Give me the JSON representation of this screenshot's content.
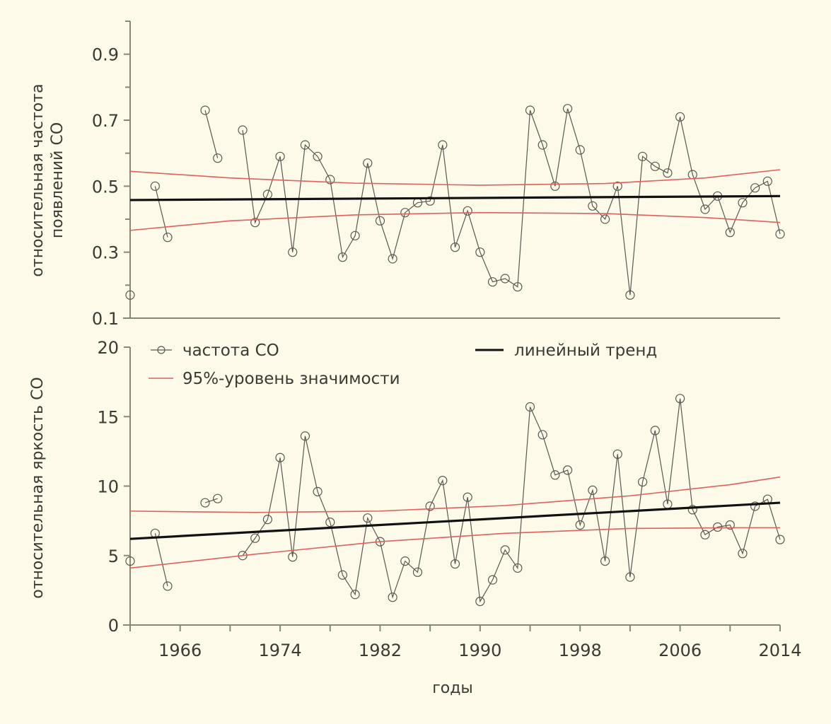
{
  "chart_data": [
    {
      "type": "line",
      "panel": "top",
      "ylabel": [
        "относительная частота",
        "появлений СО"
      ],
      "xlabel": "",
      "xlim": [
        1962,
        2014
      ],
      "ylim": [
        0.1,
        1.0
      ],
      "yticks": [
        0.1,
        0.3,
        0.5,
        0.7,
        0.9
      ],
      "ytick_labels": [
        "0.1",
        "0.3",
        "0.5",
        "0.7",
        "0.9"
      ],
      "yminor": [
        0.2,
        0.4,
        0.6,
        0.8
      ],
      "series": [
        {
          "name": "частота СО",
          "style": "line-circle-markers",
          "color": "#5a5850",
          "segments": [
            {
              "x": [
                1962
              ],
              "y": [
                0.17
              ]
            },
            {
              "x": [
                1964,
                1965
              ],
              "y": [
                0.5,
                0.345
              ]
            },
            {
              "x": [
                1968,
                1969
              ],
              "y": [
                0.73,
                0.585
              ]
            },
            {
              "x": [
                1971,
                1972,
                1973,
                1974,
                1975,
                1976,
                1977,
                1978,
                1979,
                1980,
                1981,
                1982,
                1983,
                1984,
                1985,
                1986,
                1987,
                1988,
                1989,
                1990,
                1991,
                1992,
                1993,
                1994,
                1995,
                1996,
                1997,
                1998,
                1999,
                2000,
                2001,
                2002,
                2003,
                2004,
                2005,
                2006,
                2007,
                2008,
                2009,
                2010,
                2011,
                2012,
                2013,
                2014
              ],
              "y": [
                0.67,
                0.39,
                0.475,
                0.59,
                0.3,
                0.625,
                0.59,
                0.52,
                0.285,
                0.35,
                0.57,
                0.395,
                0.28,
                0.42,
                0.45,
                0.455,
                0.625,
                0.315,
                0.425,
                0.3,
                0.21,
                0.22,
                0.195,
                0.73,
                0.625,
                0.5,
                0.735,
                0.61,
                0.44,
                0.4,
                0.5,
                0.17,
                0.59,
                0.56,
                0.54,
                0.71,
                0.535,
                0.43,
                0.47,
                0.36,
                0.45,
                0.495,
                0.515,
                0.355
              ]
            }
          ]
        },
        {
          "name": "линейный тренд",
          "style": "line",
          "color": "#111111",
          "x": [
            1962,
            2014
          ],
          "y": [
            0.458,
            0.47
          ]
        },
        {
          "name": "95%-уровень значимости (верхний)",
          "style": "line",
          "color": "#e0605a",
          "x": [
            1962,
            1970,
            1980,
            1990,
            2000,
            2008,
            2014
          ],
          "y": [
            0.545,
            0.525,
            0.509,
            0.503,
            0.508,
            0.525,
            0.55
          ]
        },
        {
          "name": "95%-уровень значимости (нижний)",
          "style": "line",
          "color": "#e0605a",
          "x": [
            1962,
            1970,
            1980,
            1990,
            2000,
            2008,
            2014
          ],
          "y": [
            0.366,
            0.395,
            0.413,
            0.42,
            0.417,
            0.405,
            0.39
          ]
        }
      ]
    },
    {
      "type": "line",
      "panel": "bottom",
      "ylabel": [
        "относительная яркость СО"
      ],
      "xlabel": "годы",
      "xlim": [
        1962,
        2014
      ],
      "ylim": [
        0,
        20
      ],
      "yticks": [
        0,
        5,
        10,
        15,
        20
      ],
      "ytick_labels": [
        "0",
        "5",
        "10",
        "15",
        "20"
      ],
      "xticks": [
        1966,
        1970,
        1974,
        1978,
        1982,
        1986,
        1990,
        1994,
        1998,
        2002,
        2006,
        2010,
        2014
      ],
      "xtick_labels": [
        "1966",
        "",
        "1974",
        "",
        "1982",
        "",
        "1990",
        "",
        "1998",
        "",
        "2006",
        "",
        "2014"
      ],
      "series": [
        {
          "name": "частота СО",
          "style": "line-circle-markers",
          "color": "#5a5850",
          "segments": [
            {
              "x": [
                1962
              ],
              "y": [
                4.6
              ]
            },
            {
              "x": [
                1964,
                1965
              ],
              "y": [
                6.6,
                2.8
              ]
            },
            {
              "x": [
                1968,
                1969
              ],
              "y": [
                8.8,
                9.1
              ]
            },
            {
              "x": [
                1971,
                1972,
                1973,
                1974,
                1975,
                1976,
                1977,
                1978,
                1979,
                1980,
                1981,
                1982,
                1983,
                1984,
                1985,
                1986,
                1987,
                1988,
                1989,
                1990,
                1991,
                1992,
                1993,
                1994,
                1995,
                1996,
                1997,
                1998,
                1999,
                2000,
                2001,
                2002,
                2003,
                2004,
                2005,
                2006,
                2007,
                2008,
                2009,
                2010,
                2011,
                2012,
                2013,
                2014
              ],
              "y": [
                5.0,
                6.25,
                7.6,
                12.05,
                4.9,
                13.6,
                9.6,
                7.4,
                3.6,
                2.2,
                7.7,
                6.0,
                2.0,
                4.6,
                3.8,
                8.55,
                10.4,
                4.4,
                9.2,
                1.7,
                3.25,
                5.4,
                4.1,
                15.7,
                13.7,
                10.8,
                11.15,
                7.2,
                9.7,
                4.6,
                12.3,
                3.45,
                10.3,
                14.0,
                8.7,
                16.3,
                8.3,
                6.5,
                7.05,
                7.2,
                5.15,
                8.55,
                9.05,
                6.15
              ]
            }
          ]
        },
        {
          "name": "линейный тренд",
          "style": "line",
          "color": "#111111",
          "x": [
            1962,
            2014
          ],
          "y": [
            6.2,
            8.8
          ]
        },
        {
          "name": "95%-уровень значимости (верхний)",
          "style": "line",
          "color": "#e0605a",
          "x": [
            1962,
            1972,
            1982,
            1992,
            2002,
            2010,
            2014
          ],
          "y": [
            8.2,
            8.1,
            8.2,
            8.6,
            9.3,
            10.1,
            10.65
          ]
        },
        {
          "name": "95%-уровень значимости (нижний)",
          "style": "line",
          "color": "#e0605a",
          "x": [
            1962,
            1972,
            1982,
            1992,
            2002,
            2010,
            2014
          ],
          "y": [
            4.1,
            5.1,
            6.0,
            6.6,
            6.95,
            7.0,
            7.0
          ]
        }
      ]
    }
  ],
  "legend": {
    "placement": "top-left of bottom panel",
    "items": [
      {
        "label": "частота СО",
        "symbol": "line-circle",
        "color": "#5a5850"
      },
      {
        "label": "линейный тренд",
        "symbol": "line",
        "color": "#111111"
      },
      {
        "label": "95%-уровень значимости",
        "symbol": "line",
        "color": "#e0605a"
      }
    ]
  },
  "colors": {
    "background": "#fdfaea",
    "axis": "#8a8772",
    "text": "#3c3a33"
  }
}
